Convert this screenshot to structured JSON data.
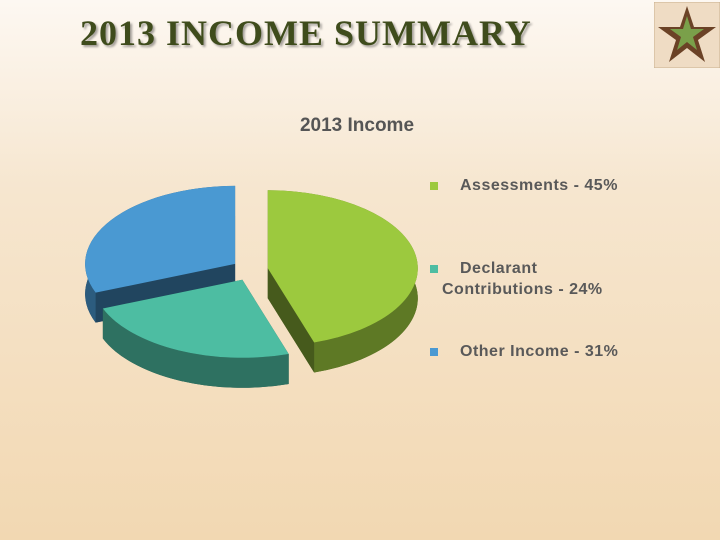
{
  "title": "2013 INCOME SUMMARY",
  "chart_data": {
    "type": "pie",
    "title": "2013 Income",
    "categories": [
      "Assessments - 45%",
      "Declarant Contributions - 24%",
      "Other Income - 31%"
    ],
    "values": [
      45,
      24,
      31
    ],
    "colors": [
      "#9cc93e",
      "#4dbda2",
      "#4a99d2"
    ]
  }
}
